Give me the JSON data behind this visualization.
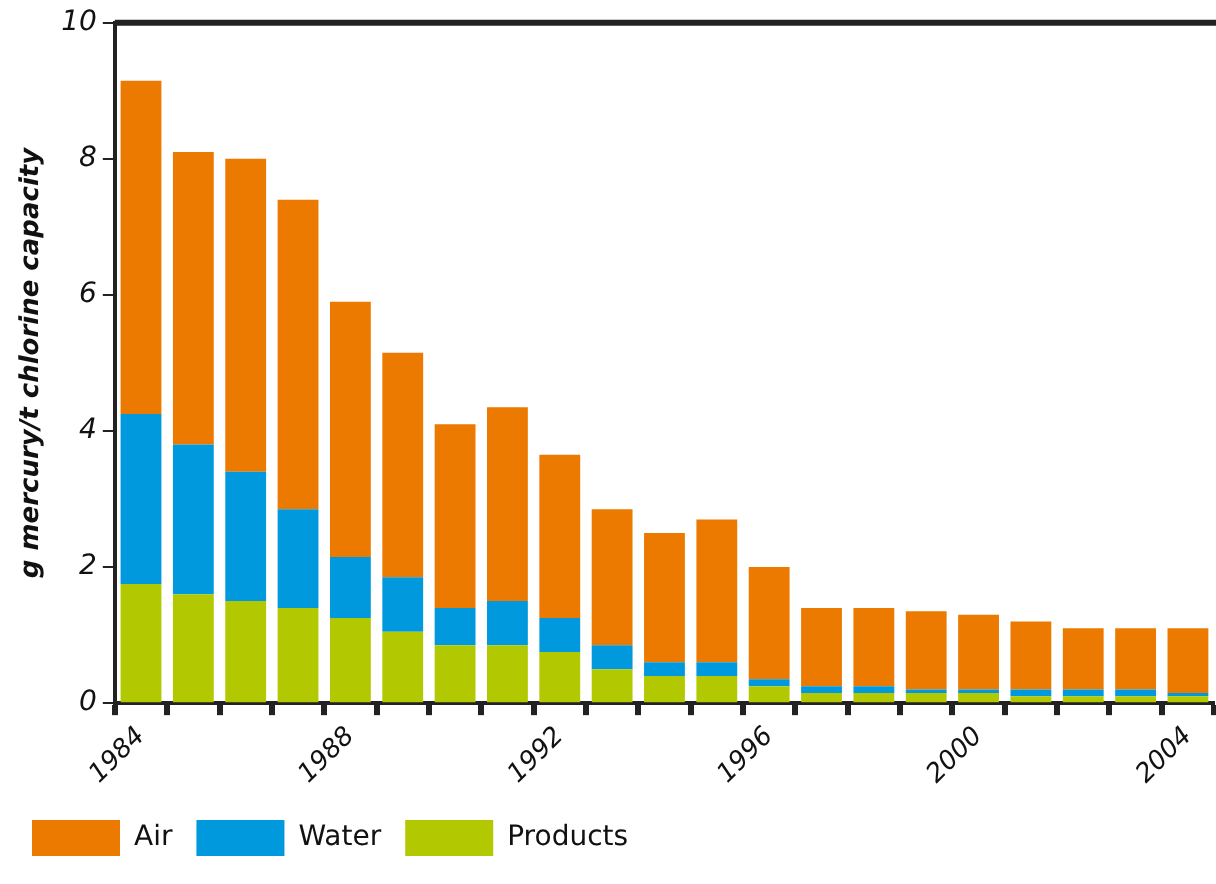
{
  "chart_data": {
    "type": "bar",
    "stacked": true,
    "ylabel": "g mercury/t chlorine capacity",
    "categories": [
      "1984",
      null,
      null,
      null,
      "1988",
      null,
      null,
      null,
      "1992",
      null,
      null,
      null,
      "1996",
      null,
      null,
      null,
      "2000",
      null,
      null,
      null,
      "2004"
    ],
    "series": [
      {
        "name": "Products",
        "color": "#b2c800",
        "values": [
          1.75,
          1.6,
          1.5,
          1.4,
          1.25,
          1.05,
          0.85,
          0.85,
          0.75,
          0.5,
          0.4,
          0.4,
          0.25,
          0.15,
          0.15,
          0.15,
          0.15,
          0.1,
          0.1,
          0.1,
          0.1
        ]
      },
      {
        "name": "Water",
        "color": "#0099dd",
        "values": [
          2.5,
          2.2,
          1.9,
          1.45,
          0.9,
          0.8,
          0.55,
          0.65,
          0.5,
          0.35,
          0.2,
          0.2,
          0.1,
          0.1,
          0.1,
          0.05,
          0.05,
          0.1,
          0.1,
          0.1,
          0.05
        ]
      },
      {
        "name": "Air",
        "color": "#ec7a00",
        "values": [
          4.9,
          4.3,
          4.6,
          4.55,
          3.75,
          3.3,
          2.7,
          2.85,
          2.4,
          2.0,
          1.9,
          2.1,
          1.65,
          1.15,
          1.15,
          1.15,
          1.1,
          1.0,
          0.9,
          0.9,
          0.95
        ]
      }
    ],
    "ylim": [
      0,
      10
    ],
    "yticks": [
      0,
      2,
      4,
      6,
      8,
      10
    ],
    "grid": false,
    "legend": "bottom"
  }
}
